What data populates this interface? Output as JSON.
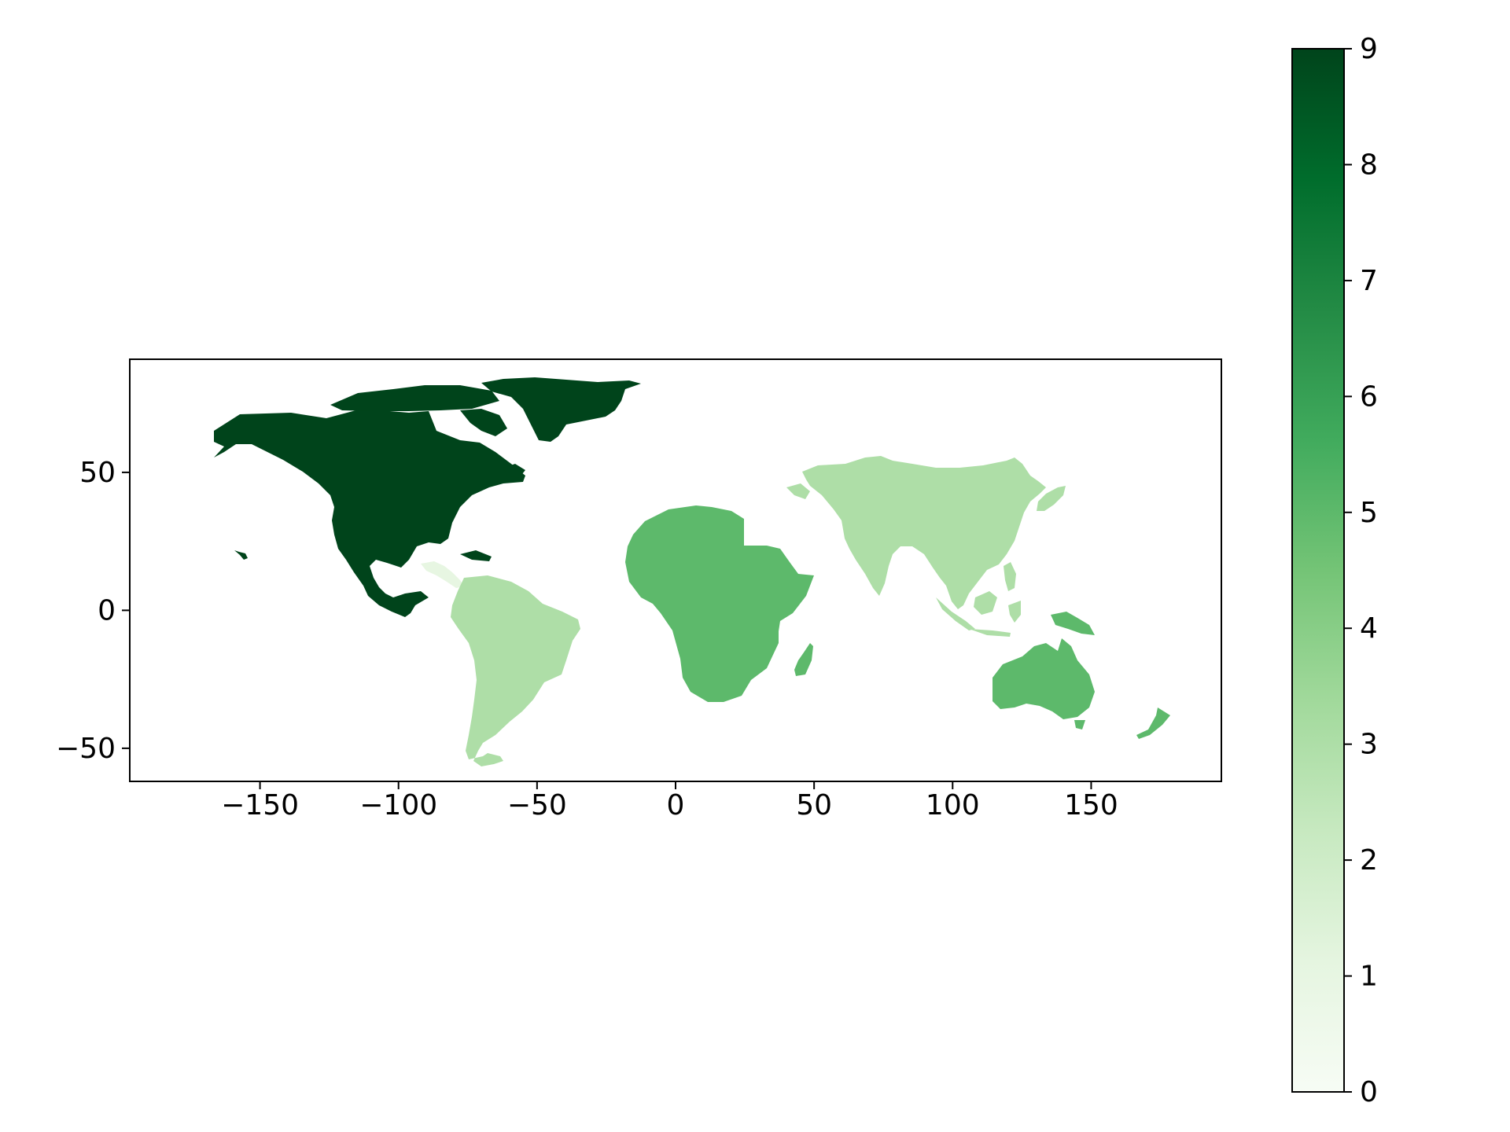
{
  "chart_data": {
    "type": "choropleth",
    "xlim": [
      -197,
      197
    ],
    "ylim": [
      -62,
      91
    ],
    "x_ticks": [
      {
        "value": -150,
        "label": "−150"
      },
      {
        "value": -100,
        "label": "−100"
      },
      {
        "value": -50,
        "label": "−50"
      },
      {
        "value": 0,
        "label": "0"
      },
      {
        "value": 50,
        "label": "50"
      },
      {
        "value": 100,
        "label": "100"
      },
      {
        "value": 150,
        "label": "150"
      }
    ],
    "y_ticks": [
      {
        "value": 50,
        "label": "50"
      },
      {
        "value": 0,
        "label": "0"
      },
      {
        "value": -50,
        "label": "−50"
      }
    ],
    "colorbar": {
      "colormap": "Greens",
      "range": [
        0,
        9
      ],
      "stops": [
        "#f7fcf5",
        "#e5f5e0",
        "#c7e9c0",
        "#a1d99b",
        "#74c476",
        "#41ab5d",
        "#238b45",
        "#006d2c",
        "#00441b"
      ],
      "ticks": [
        {
          "value": 0,
          "label": "0"
        },
        {
          "value": 1,
          "label": "1"
        },
        {
          "value": 2,
          "label": "2"
        },
        {
          "value": 3,
          "label": "3"
        },
        {
          "value": 4,
          "label": "4"
        },
        {
          "value": 5,
          "label": "5"
        },
        {
          "value": 6,
          "label": "6"
        },
        {
          "value": 7,
          "label": "7"
        },
        {
          "value": 8,
          "label": "8"
        },
        {
          "value": 9,
          "label": "9"
        }
      ]
    },
    "regions": [
      {
        "id": "north-america",
        "value": 9
      },
      {
        "id": "central-america",
        "value": 1
      },
      {
        "id": "south-america",
        "value": 3
      },
      {
        "id": "africa",
        "value": 5
      },
      {
        "id": "asia",
        "value": 3
      },
      {
        "id": "oceania",
        "value": 5
      }
    ]
  }
}
